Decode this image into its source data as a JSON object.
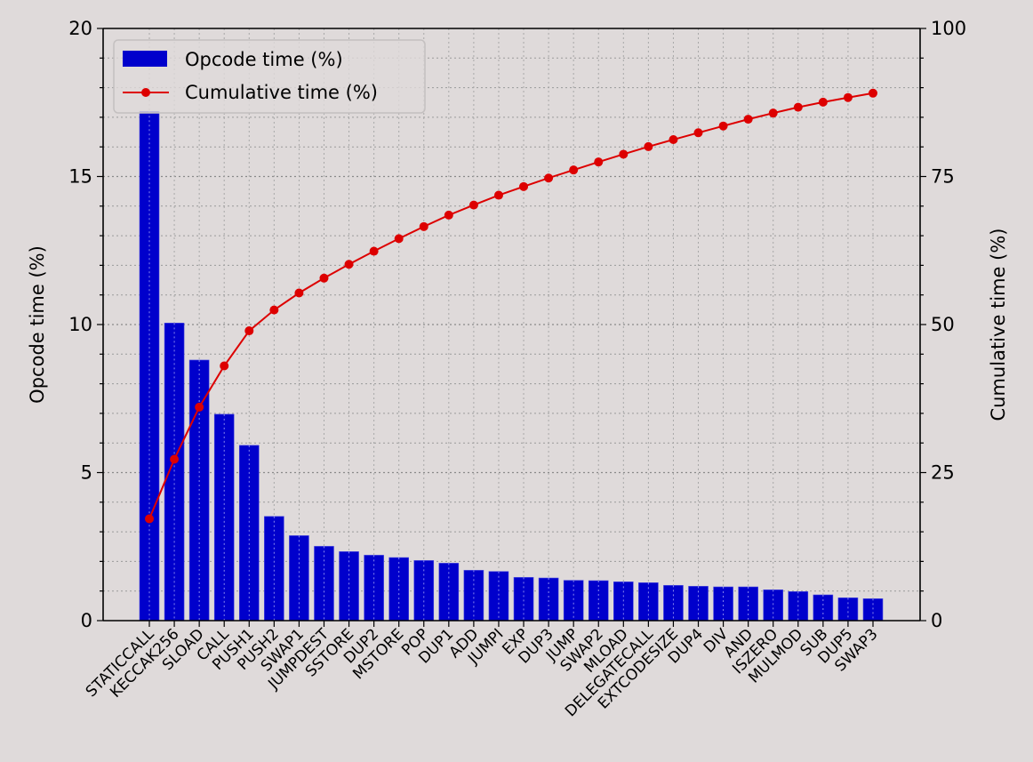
{
  "chart_data": {
    "type": "bar",
    "title": "",
    "xlabel": "",
    "ylabel": "Opcode time (%)",
    "y2label": "Cumulative time (%)",
    "ylim": [
      0,
      20
    ],
    "y2lim": [
      0,
      100
    ],
    "yticks": [
      0,
      5,
      10,
      15,
      20
    ],
    "y2ticks": [
      0,
      25,
      50,
      75,
      100
    ],
    "grid": true,
    "legend_position": "upper left",
    "legend": [
      "Opcode time (%)",
      "Cumulative time (%)"
    ],
    "categories": [
      "STATICCALL",
      "KECCAK256",
      "SLOAD",
      "CALL",
      "PUSH1",
      "PUSH2",
      "SWAP1",
      "JUMPDEST",
      "SSTORE",
      "DUP2",
      "MSTORE",
      "POP",
      "DUP1",
      "ADD",
      "JUMPI",
      "EXP",
      "DUP3",
      "JUMP",
      "SWAP2",
      "MLOAD",
      "DELEGATECALL",
      "EXTCODESIZE",
      "DUP4",
      "DIV",
      "AND",
      "ISZERO",
      "MULMOD",
      "SUB",
      "DUP5",
      "SWAP3"
    ],
    "series": [
      {
        "name": "Opcode time (%)",
        "type": "bar",
        "axis": "left",
        "color": "#0000cc",
        "values": [
          17.2,
          10.05,
          8.8,
          6.97,
          5.92,
          3.52,
          2.87,
          2.51,
          2.33,
          2.21,
          2.13,
          2.03,
          1.94,
          1.7,
          1.66,
          1.46,
          1.44,
          1.36,
          1.35,
          1.31,
          1.28,
          1.19,
          1.16,
          1.14,
          1.14,
          1.04,
          0.98,
          0.87,
          0.77,
          0.74
        ]
      },
      {
        "name": "Cumulative time (%)",
        "type": "line",
        "axis": "right",
        "color": "#dd0000",
        "values": [
          17.2,
          27.25,
          36.05,
          43.02,
          48.94,
          52.46,
          55.33,
          57.84,
          60.17,
          62.38,
          64.51,
          66.54,
          68.48,
          70.18,
          71.84,
          73.3,
          74.74,
          76.1,
          77.45,
          78.76,
          80.04,
          81.23,
          82.39,
          83.53,
          84.67,
          85.71,
          86.69,
          87.56,
          88.33,
          89.07
        ]
      }
    ]
  }
}
